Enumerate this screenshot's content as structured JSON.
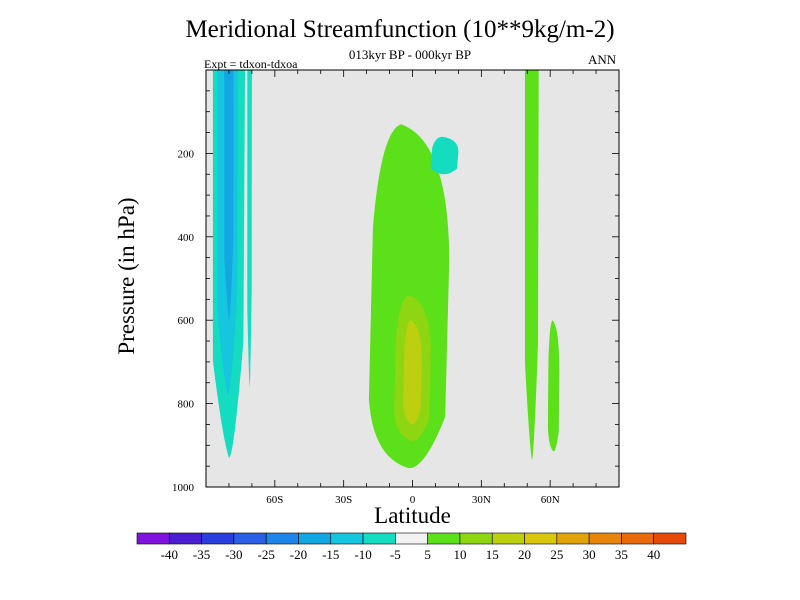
{
  "chart_data": {
    "type": "heatmap",
    "title": "Meridional Streamfunction (10**9kg/m-2)",
    "subtitle": "013kyr BP - 000kyr BP",
    "expt_label": "Expt = tdxon-tdxoa",
    "season": "ANN",
    "xlabel": "Latitude",
    "ylabel": "Pressure (in hPa)",
    "xlim": [
      -90,
      90
    ],
    "ylim": [
      1000,
      0
    ],
    "y_scale": "linear, inverted",
    "x_ticks": [
      {
        "value": -60,
        "label": "60S"
      },
      {
        "value": -30,
        "label": "30S"
      },
      {
        "value": 0,
        "label": "0"
      },
      {
        "value": 30,
        "label": "30N"
      },
      {
        "value": 60,
        "label": "60N"
      }
    ],
    "y_ticks": [
      {
        "value": 200,
        "label": "200"
      },
      {
        "value": 400,
        "label": "400"
      },
      {
        "value": 600,
        "label": "600"
      },
      {
        "value": 800,
        "label": "800"
      },
      {
        "value": 1000,
        "label": "1000"
      }
    ],
    "background_color": "#e6e6e6",
    "colorbar": {
      "levels": [
        -40,
        -35,
        -30,
        -25,
        -20,
        -15,
        -10,
        -5,
        5,
        10,
        15,
        20,
        25,
        30,
        35,
        40
      ],
      "labels": [
        "-40",
        "-35",
        "-30",
        "-25",
        "-20",
        "-15",
        "-10",
        "-5",
        "5",
        "10",
        "15",
        "20",
        "25",
        "30",
        "35",
        "40"
      ],
      "colors": [
        "#7f14e1",
        "#4b1ed2",
        "#2a3ee0",
        "#2a5fe6",
        "#1f85e8",
        "#12a7e3",
        "#16c5de",
        "#14dcc0",
        "#f2f2f2",
        "#5ce01a",
        "#8ed611",
        "#bdd010",
        "#d8c70d",
        "#e0a40a",
        "#e6850a",
        "#e86a0a",
        "#e64a0a"
      ]
    },
    "regions": [
      {
        "name": "southern-high-latitude-cell",
        "level_range": [
          -10,
          -5
        ],
        "color": "#14dcc0",
        "lat_min": -87,
        "lat_max": -73,
        "p_top": 0,
        "p_bottom": 930
      },
      {
        "name": "southern-inner-cell",
        "level_range": [
          -15,
          -10
        ],
        "color": "#16c5de",
        "lat_min": -85,
        "lat_max": -76,
        "p_top": 0,
        "p_bottom": 780
      },
      {
        "name": "southern-core-cell",
        "level_range": [
          -20,
          -15
        ],
        "color": "#12a7e3",
        "lat_min": -82,
        "lat_max": -78,
        "p_top": 0,
        "p_bottom": 600
      },
      {
        "name": "southern-narrow-band",
        "level_range": [
          -10,
          -5
        ],
        "color": "#14dcc0",
        "lat_min": -72,
        "lat_max": -70,
        "p_top": 0,
        "p_bottom": 760
      },
      {
        "name": "tropical-cell",
        "level_range": [
          5,
          10
        ],
        "color": "#5ce01a",
        "lat_min": -19,
        "lat_max": 16,
        "p_top": 130,
        "p_bottom": 955
      },
      {
        "name": "tropical-inner",
        "level_range": [
          10,
          15
        ],
        "color": "#8ed611",
        "lat_min": -8,
        "lat_max": 8,
        "p_top": 540,
        "p_bottom": 890
      },
      {
        "name": "tropical-core",
        "level_range": [
          15,
          20
        ],
        "color": "#bdd010",
        "lat_min": -4,
        "lat_max": 4,
        "p_top": 600,
        "p_bottom": 850
      },
      {
        "name": "upper-tropical-patch",
        "level_range": [
          -10,
          -5
        ],
        "color": "#14dcc0",
        "lat_min": 8,
        "lat_max": 20,
        "p_top": 160,
        "p_bottom": 250
      },
      {
        "name": "northern-band",
        "level_range": [
          5,
          10
        ],
        "color": "#5ce01a",
        "lat_min": 49,
        "lat_max": 55,
        "p_top": 0,
        "p_bottom": 935
      },
      {
        "name": "northern-secondary-band",
        "level_range": [
          5,
          10
        ],
        "color": "#5ce01a",
        "lat_min": 59,
        "lat_max": 64,
        "p_top": 600,
        "p_bottom": 915
      }
    ]
  }
}
